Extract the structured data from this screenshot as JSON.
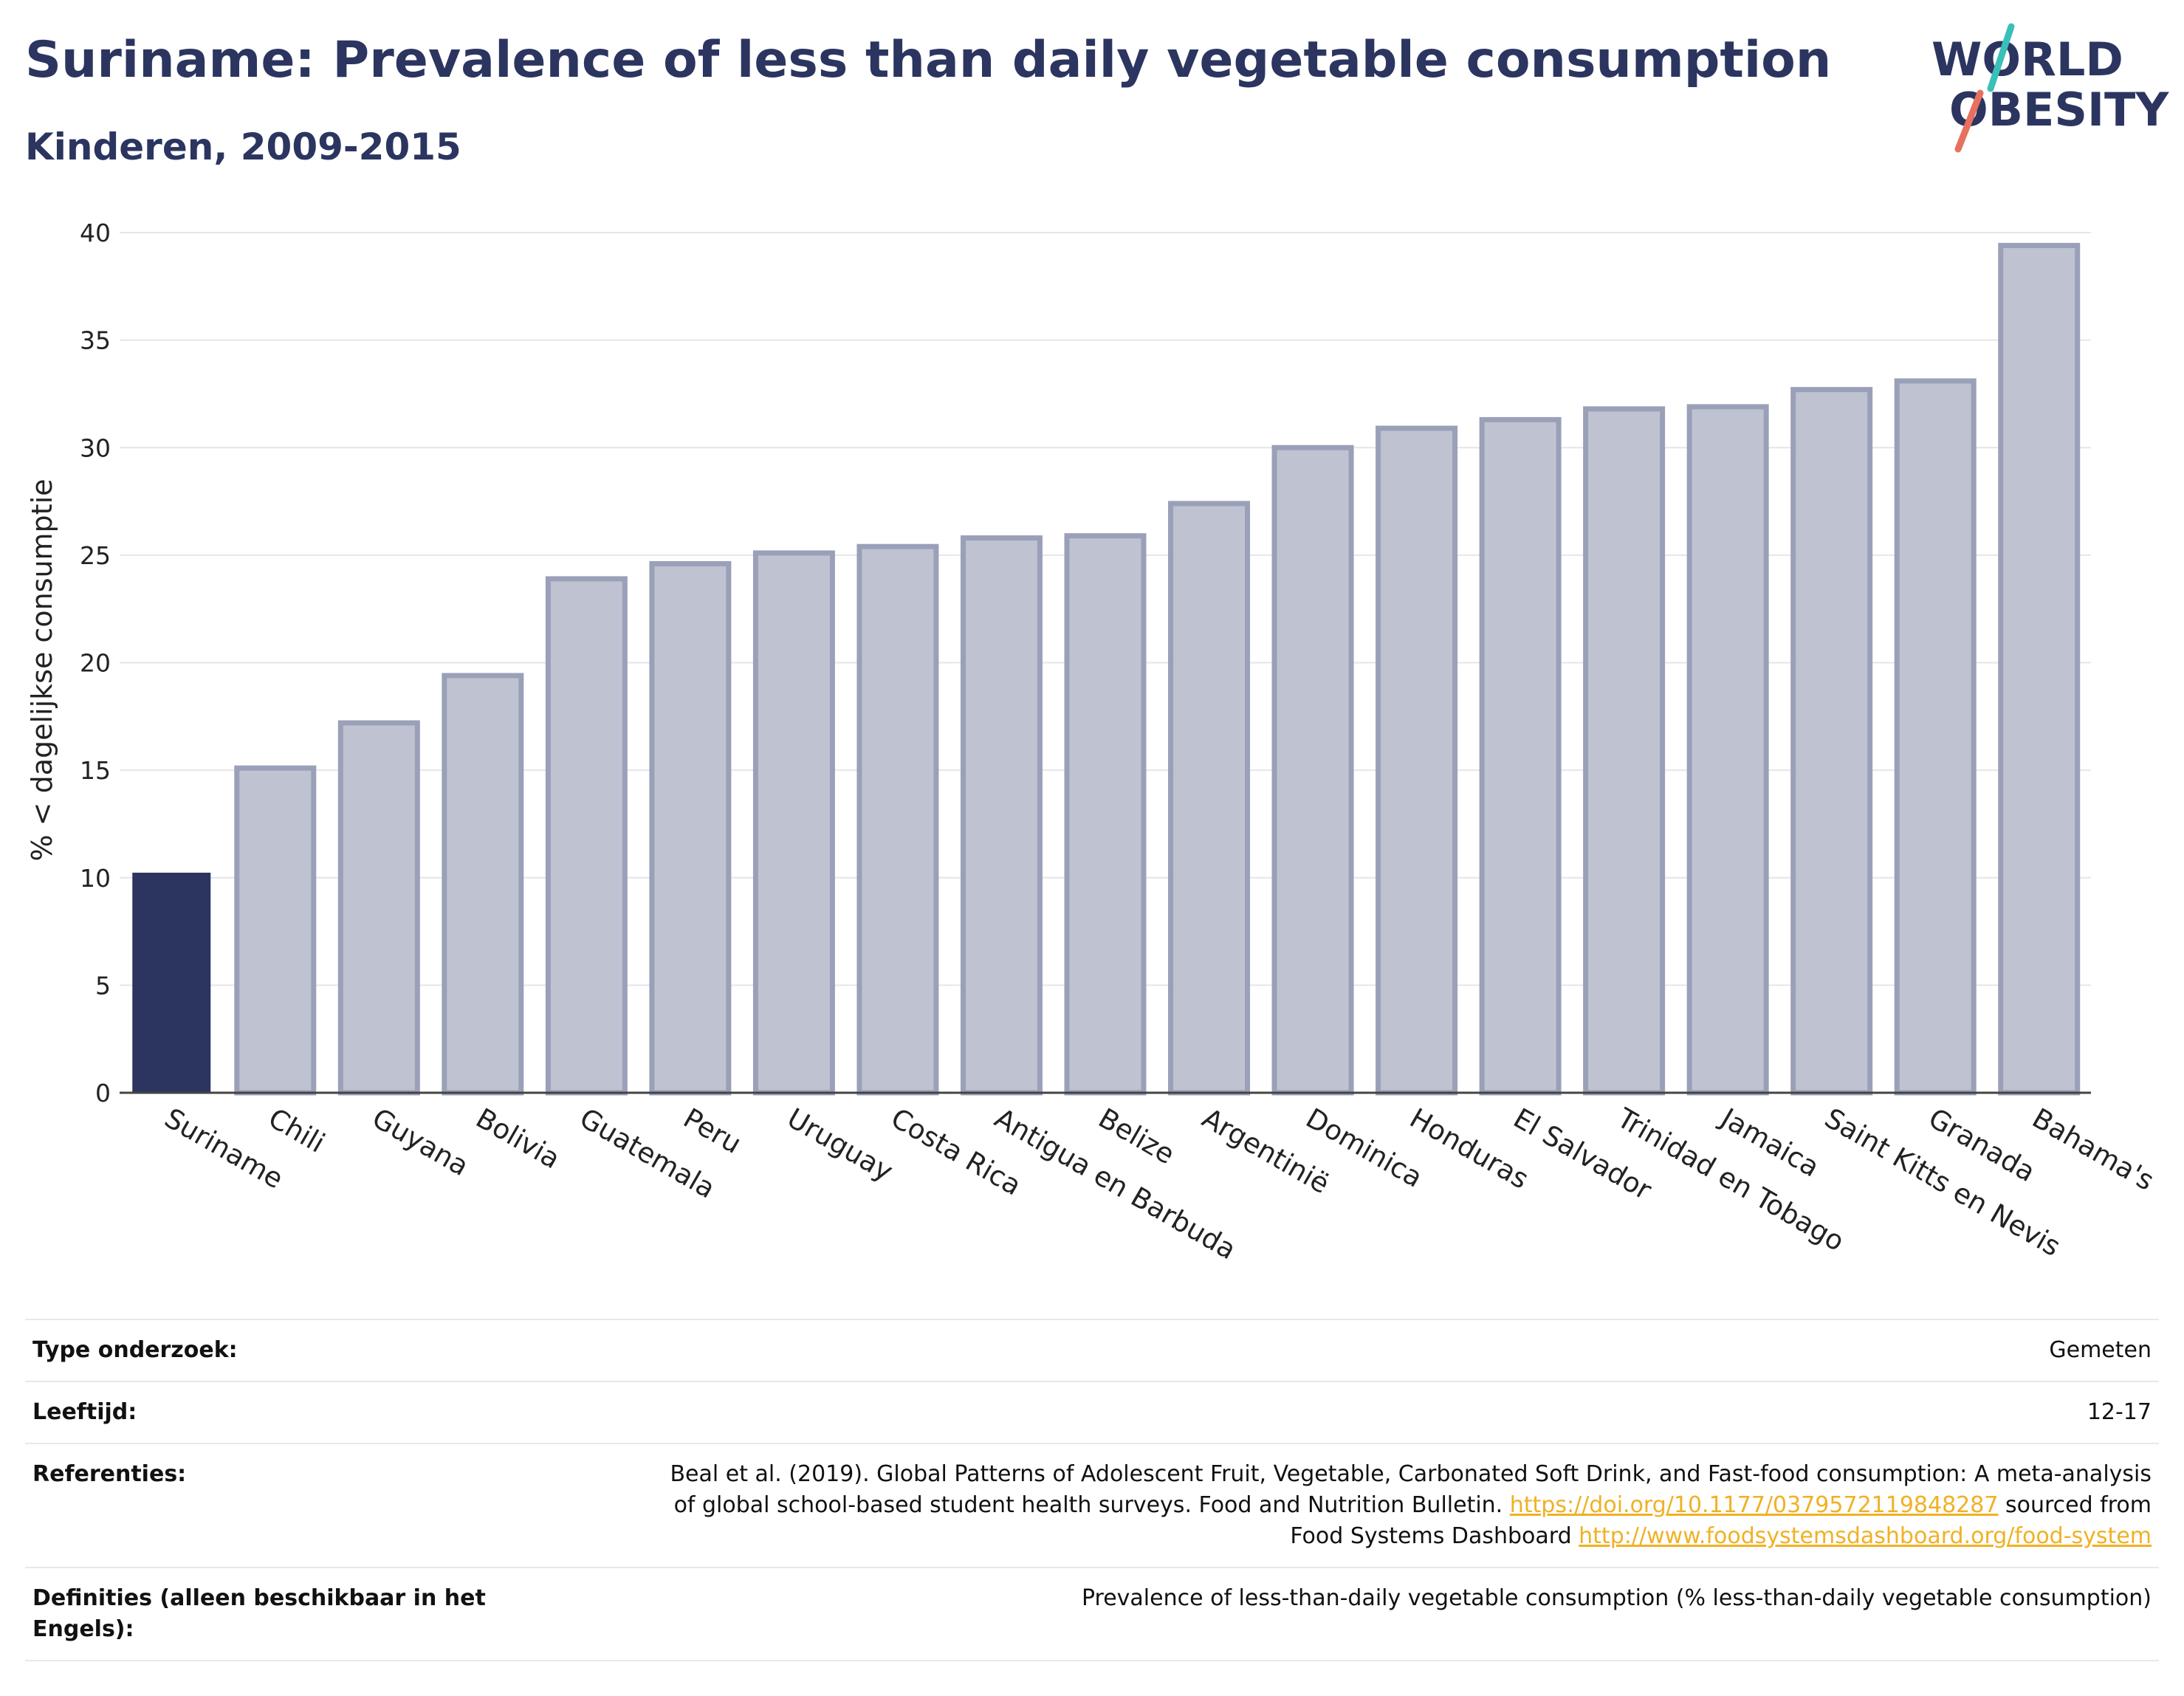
{
  "header": {
    "title": "Suriname: Prevalence of less than daily vegetable consumption",
    "subtitle": "Kinderen, 2009-2015",
    "logo_line1": "WORLD",
    "logo_line2": "OBESITY"
  },
  "colors": {
    "highlight": "#2b3560",
    "bar_fill": "#bfc2d0",
    "bar_stroke": "#9aa0b8",
    "grid": "#e6e6ea",
    "text": "#2b3560",
    "logo_teal": "#3bbfb9",
    "logo_red": "#e8705e",
    "link": "#f0b124"
  },
  "chart_data": {
    "type": "bar",
    "title": "Suriname: Prevalence of less than daily vegetable consumption",
    "subtitle": "Kinderen, 2009-2015",
    "xlabel": "",
    "ylabel": "% < dagelijkse consumptie",
    "ylim": [
      0,
      40
    ],
    "yticks": [
      0,
      5,
      10,
      15,
      20,
      25,
      30,
      35,
      40
    ],
    "grid": true,
    "highlight_category": "Suriname",
    "categories": [
      "Suriname",
      "Chili",
      "Guyana",
      "Bolivia",
      "Guatemala",
      "Peru",
      "Uruguay",
      "Costa Rica",
      "Antigua en Barbuda",
      "Belize",
      "Argentinië",
      "Dominica",
      "Honduras",
      "El Salvador",
      "Trinidad en Tobago",
      "Jamaica",
      "Saint Kitts en Nevis",
      "Granada",
      "Bahama's"
    ],
    "values": [
      10.2,
      15.1,
      17.2,
      19.4,
      23.9,
      24.6,
      25.1,
      25.4,
      25.8,
      25.9,
      27.4,
      30.0,
      30.9,
      31.3,
      31.8,
      31.9,
      32.7,
      33.1,
      39.4
    ]
  },
  "meta": {
    "rows": [
      {
        "label": "Type onderzoek:",
        "value": "Gemeten"
      },
      {
        "label": "Leeftijd:",
        "value": "12-17"
      },
      {
        "label": "Referenties:",
        "value_line1": "Beal et al. (2019). Global Patterns of Adolescent Fruit, Vegetable, Carbonated Soft Drink, and Fast-food consumption: A meta-analysis",
        "value_line2a": "of global school-based student health surveys. Food and Nutrition Bulletin. ",
        "link1": "https://doi.org/10.1177/0379572119848287",
        "value_line2b": " sourced from",
        "value_line3a": "Food Systems Dashboard ",
        "link2": "http://www.foodsystemsdashboard.org/food-system"
      },
      {
        "label": "Definities (alleen beschikbaar in het Engels):",
        "value": "Prevalence of less-than-daily vegetable consumption (% less-than-daily vegetable consumption)"
      }
    ]
  }
}
